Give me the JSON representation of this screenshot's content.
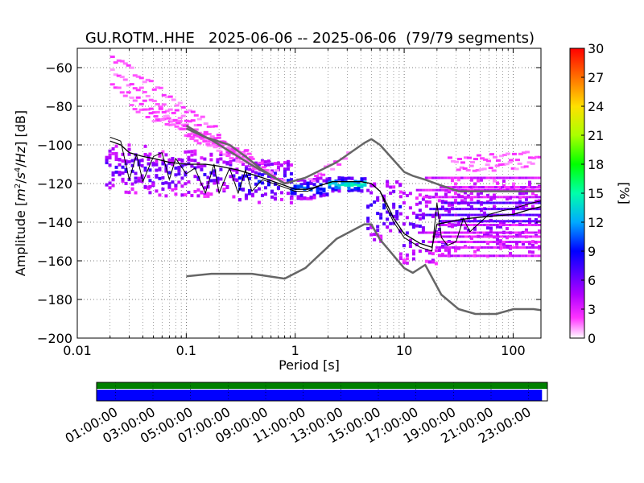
{
  "chart_data": {
    "type": "heatmap",
    "title": "GU.ROTM..HHE   2025-06-06 -- 2025-06-06  (79/79 segments)",
    "xlabel": "Period [s]",
    "ylabel": "Amplitude [m^2/s^4/Hz] [dB]",
    "x_scale": "log",
    "xlim": [
      0.01,
      180
    ],
    "ylim": [
      -200,
      -50
    ],
    "x_ticks": [
      0.01,
      0.1,
      1,
      10,
      100
    ],
    "x_tick_labels": [
      "0.01",
      "0.1",
      "1",
      "10",
      "100"
    ],
    "y_ticks": [
      -200,
      -180,
      -160,
      -140,
      -120,
      -100,
      -80,
      -60
    ],
    "y_tick_labels": [
      "−200",
      "−180",
      "−160",
      "−140",
      "−120",
      "−100",
      "−80",
      "−60"
    ],
    "grid": true,
    "colorbar": {
      "label": "[%]",
      "min": 0,
      "max": 30,
      "ticks": [
        0,
        3,
        6,
        9,
        12,
        15,
        18,
        21,
        24,
        27,
        30
      ],
      "tick_labels": [
        "0",
        "3",
        "6",
        "9",
        "12",
        "15",
        "18",
        "21",
        "24",
        "27",
        "30"
      ]
    },
    "noise_model_high": {
      "period": [
        0.1,
        0.17,
        0.4,
        0.8,
        1.24,
        2.4,
        4.3,
        5,
        6,
        10,
        12,
        15.6,
        21.9,
        31.6,
        45,
        70,
        101,
        154,
        180
      ],
      "psd": [
        -91.5,
        -97.4,
        -110.5,
        -120,
        -117,
        -109,
        -99,
        -97,
        -100,
        -114,
        -116,
        -118,
        -121,
        -124,
        -124,
        -124,
        -124,
        -124,
        -124
      ]
    },
    "noise_model_low": {
      "period": [
        0.1,
        0.17,
        0.4,
        0.8,
        1.24,
        2.4,
        4.3,
        5,
        6,
        10,
        12,
        15.6,
        21.9,
        31.6,
        45,
        70,
        101,
        154,
        180
      ],
      "psd": [
        -168,
        -166.7,
        -166.7,
        -169.2,
        -163.7,
        -148.6,
        -141.1,
        -141.1,
        -149,
        -163.8,
        -166.2,
        -162.1,
        -177.5,
        -185,
        -187.5,
        -187.5,
        -185,
        -185,
        -185.5
      ]
    },
    "median_line": {
      "period": [
        0.02,
        0.025,
        0.03,
        0.04,
        0.05,
        0.07,
        0.1,
        0.15,
        0.2,
        0.3,
        0.5,
        0.8,
        1.0,
        1.3,
        1.7,
        2.2,
        3,
        4,
        5,
        6,
        7,
        8,
        10,
        14,
        18,
        20,
        25,
        30,
        40,
        60,
        100,
        150,
        180
      ],
      "psd": [
        -98,
        -100,
        -104,
        -106,
        -107,
        -109,
        -110,
        -110,
        -111,
        -113,
        -117,
        -121,
        -123,
        -123,
        -121,
        -119,
        -119,
        -119,
        -120,
        -124,
        -131,
        -138,
        -146,
        -151,
        -153,
        -141,
        -140,
        -139,
        -138,
        -137,
        -136,
        -133,
        -132
      ]
    },
    "mode_line": {
      "period": [
        0.02,
        0.025,
        0.03,
        0.035,
        0.04,
        0.05,
        0.06,
        0.07,
        0.08,
        0.1,
        0.12,
        0.15,
        0.18,
        0.2,
        0.25,
        0.3,
        0.35,
        0.4,
        0.5,
        0.8,
        1.0,
        1.3,
        1.7,
        2.2,
        3,
        4,
        5,
        6,
        7,
        8,
        10,
        14,
        18,
        20,
        22,
        25,
        30,
        35,
        40,
        50,
        60,
        80,
        100,
        150,
        180
      ],
      "psd": [
        -96,
        -98,
        -118,
        -105,
        -119,
        -106,
        -104,
        -118,
        -107,
        -115,
        -112,
        -125,
        -110,
        -125,
        -112,
        -125,
        -113,
        -124,
        -118,
        -122,
        -124,
        -124,
        -121,
        -119,
        -119,
        -119,
        -120,
        -124,
        -133,
        -140,
        -148,
        -153,
        -155,
        -130,
        -148,
        -152,
        -150,
        -138,
        -145,
        -140,
        -136,
        -134,
        -133,
        -130,
        -129
      ]
    },
    "extra_grey_segment": {
      "period": [
        0.1,
        0.15,
        0.25,
        0.35,
        0.5,
        0.8
      ],
      "psd": [
        -90,
        -96,
        -100,
        -106,
        -113,
        -120
      ]
    },
    "histogram_bands": [
      {
        "p0": 0.018,
        "p1": 0.045,
        "d0": -100,
        "d1": -125,
        "pct": 5
      },
      {
        "p0": 0.045,
        "p1": 0.3,
        "d0": -103,
        "d1": -127,
        "pct": 5
      },
      {
        "p0": 0.3,
        "p1": 0.9,
        "d0": -108,
        "d1": -130,
        "pct": 7
      },
      {
        "p0": 0.9,
        "p1": 2,
        "d0": -117,
        "d1": -128,
        "pct": 9
      },
      {
        "p0": 2,
        "p1": 4.5,
        "d0": -117,
        "d1": -124,
        "pct": 14
      },
      {
        "p0": 4.5,
        "p1": 9,
        "d0": -118,
        "d1": -150,
        "pct": 6
      },
      {
        "p0": 9,
        "p1": 25,
        "d0": -123,
        "d1": -162,
        "pct": 5
      },
      {
        "p0": 25,
        "p1": 180,
        "d0": -118,
        "d1": -158,
        "pct": 4
      }
    ],
    "upper_scatter_traces": [
      {
        "p0": 0.02,
        "p1": 0.2,
        "d0": -55,
        "d1": -94
      },
      {
        "p0": 0.02,
        "p1": 0.4,
        "d0": -62,
        "d1": -110
      },
      {
        "p0": 0.02,
        "p1": 0.8,
        "d0": -70,
        "d1": -118
      },
      {
        "p0": 0.03,
        "p1": 0.6,
        "d0": -80,
        "d1": -116
      },
      {
        "p0": 0.05,
        "p1": 0.4,
        "d0": -85,
        "d1": -106
      },
      {
        "p0": 0.1,
        "p1": 0.35,
        "d0": -95,
        "d1": -104
      },
      {
        "p0": 1.3,
        "p1": 3,
        "d0": -118,
        "d1": -105
      },
      {
        "p0": 25,
        "p1": 180,
        "d0": -108,
        "d1": -105
      },
      {
        "p0": 30,
        "p1": 150,
        "d0": -113,
        "d1": -110
      }
    ]
  },
  "timeline": {
    "tick_labels": [
      "01:00:00",
      "03:00:00",
      "05:00:00",
      "07:00:00",
      "09:00:00",
      "11:00:00",
      "13:00:00",
      "15:00:00",
      "17:00:00",
      "19:00:00",
      "21:00:00",
      "23:00:00"
    ],
    "available_color": "#008000",
    "used_color": "#0000ff",
    "used_fraction": 0.988
  }
}
